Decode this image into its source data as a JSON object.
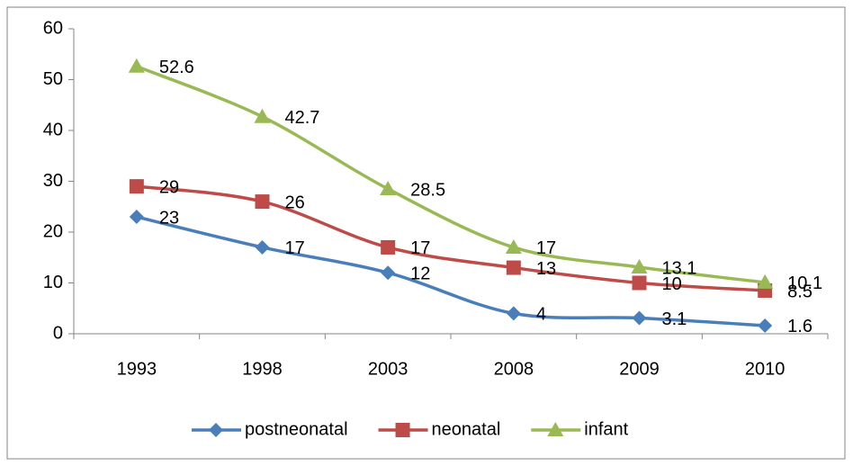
{
  "chart_data": {
    "type": "line",
    "categories": [
      "1993",
      "1998",
      "2003",
      "2008",
      "2009",
      "2010"
    ],
    "series": [
      {
        "name": "postneonatal",
        "color": "#4a7ebb",
        "marker": "diamond",
        "values": [
          23,
          17,
          12,
          4,
          3.1,
          1.6
        ]
      },
      {
        "name": "neonatal",
        "color": "#be4b48",
        "marker": "square",
        "values": [
          29,
          26,
          17,
          13,
          10,
          8.5
        ]
      },
      {
        "name": "infant",
        "color": "#98b954",
        "marker": "triangle",
        "values": [
          52.6,
          42.7,
          28.5,
          17,
          13.1,
          10.1
        ]
      }
    ],
    "ylim": [
      0,
      60
    ],
    "yticks": [
      0,
      10,
      20,
      30,
      40,
      50,
      60
    ],
    "grid": false,
    "smooth": true,
    "legend": "bottom",
    "data_labels": true
  }
}
